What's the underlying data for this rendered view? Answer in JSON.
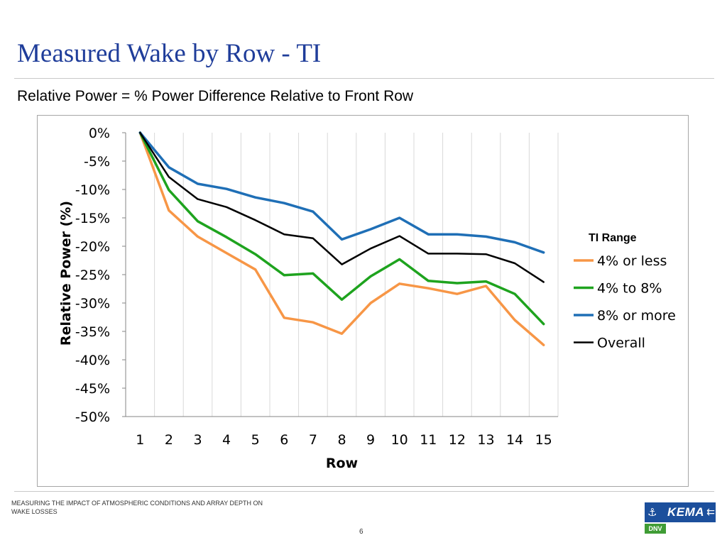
{
  "slide": {
    "title": "Measured Wake by Row - TI",
    "subtitle": "Relative Power = % Power Difference Relative to Front Row",
    "footer": "MEASURING THE IMPACT OF ATMOSPHERIC CONDITIONS AND ARRAY DEPTH ON WAKE LOSSES",
    "page_number": "6",
    "logo": {
      "name": "KEMA",
      "sub": "DNV",
      "colors": {
        "primary": "#1c4f9c",
        "secondary": "#3f9c35"
      }
    }
  },
  "chart_data": {
    "type": "line",
    "xlabel": "Row",
    "ylabel": "Relative Power (%)",
    "x": [
      1,
      2,
      3,
      4,
      5,
      6,
      7,
      8,
      9,
      10,
      11,
      12,
      13,
      14,
      15
    ],
    "x_tick_labels": [
      "1",
      "2",
      "3",
      "4",
      "5",
      "6",
      "7",
      "8",
      "9",
      "10",
      "11",
      "12",
      "13",
      "14",
      "15"
    ],
    "ylim": [
      -50,
      0
    ],
    "y_ticks": [
      0,
      -5,
      -10,
      -15,
      -20,
      -25,
      -30,
      -35,
      -40,
      -45,
      -50
    ],
    "y_tick_labels": [
      "0%",
      "-5%",
      "-10%",
      "-15%",
      "-20%",
      "-25%",
      "-30%",
      "-35%",
      "-40%",
      "-45%",
      "-50%"
    ],
    "grid": "vertical",
    "legend_title": "TI Range",
    "legend_position": "right",
    "series": [
      {
        "name": "4% or less",
        "color": "#f79646",
        "values": [
          0,
          -13.7,
          -18.3,
          -21.2,
          -24.1,
          -32.6,
          -33.4,
          -35.4,
          -30.0,
          -26.6,
          -27.4,
          -28.4,
          -27.0,
          -33.0,
          -37.4
        ]
      },
      {
        "name": "4% to 8%",
        "color": "#1ea31e",
        "values": [
          0,
          -10.1,
          -15.6,
          -18.4,
          -21.4,
          -25.1,
          -24.8,
          -29.4,
          -25.3,
          -22.3,
          -26.1,
          -26.5,
          -26.2,
          -28.4,
          -33.7
        ]
      },
      {
        "name": "8% or more",
        "color": "#1f6fb6",
        "values": [
          0,
          -6.1,
          -9.0,
          -9.9,
          -11.4,
          -12.4,
          -13.9,
          -18.8,
          -17.0,
          -15.0,
          -17.9,
          -17.9,
          -18.3,
          -19.3,
          -21.1
        ]
      },
      {
        "name": "Overall",
        "color": "#000000",
        "values": [
          0,
          -7.8,
          -11.7,
          -13.1,
          -15.4,
          -17.9,
          -18.6,
          -23.2,
          -20.4,
          -18.2,
          -21.3,
          -21.3,
          -21.4,
          -23.0,
          -26.3
        ]
      }
    ]
  }
}
